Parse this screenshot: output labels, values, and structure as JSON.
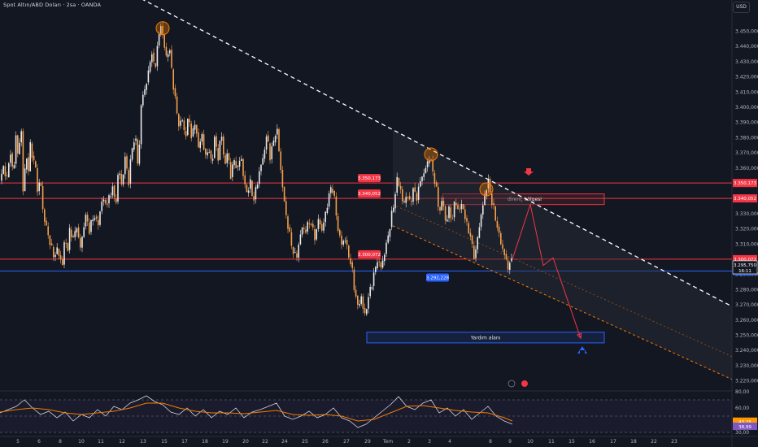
{
  "header": {
    "title": "Spot Altın/ABD Doları · 2sa · OANDA",
    "currency": "USD"
  },
  "chart_data": {
    "type": "candlestick",
    "instrument": "Spot Altın/ABD Doları",
    "timeframe": "2sa",
    "source": "OANDA",
    "ylim": [
      3215,
      3462
    ],
    "y_ticks": [
      {
        "value": 3450,
        "label": "3.450,000"
      },
      {
        "value": 3440,
        "label": "3.440,000"
      },
      {
        "value": 3430,
        "label": "3.430,000"
      },
      {
        "value": 3420,
        "label": "3.420,000"
      },
      {
        "value": 3410,
        "label": "3.410,000"
      },
      {
        "value": 3400,
        "label": "3.400,000"
      },
      {
        "value": 3390,
        "label": "3.390,000"
      },
      {
        "value": 3380,
        "label": "3.380,000"
      },
      {
        "value": 3370,
        "label": "3.370,000"
      },
      {
        "value": 3360,
        "label": "3.360,000"
      },
      {
        "value": 3330,
        "label": "3.330,000"
      },
      {
        "value": 3320,
        "label": "3.320,000"
      },
      {
        "value": 3310,
        "label": "3.310,000"
      },
      {
        "value": 3290,
        "label": "3.290,000"
      },
      {
        "value": 3280,
        "label": "3.280,000"
      },
      {
        "value": 3270,
        "label": "3.270,000"
      },
      {
        "value": 3260,
        "label": "3.260,000"
      },
      {
        "value": 3250,
        "label": "3.250,000"
      },
      {
        "value": 3240,
        "label": "3.240,000"
      },
      {
        "value": 3230,
        "label": "3.230,000"
      },
      {
        "value": 3220,
        "label": "3.220,000"
      }
    ],
    "x_ticks": [
      "5",
      "6",
      "8",
      "10",
      "11",
      "12",
      "13",
      "15",
      "17",
      "18",
      "19",
      "20",
      "22",
      "24",
      "25",
      "26",
      "27",
      "29",
      "Tem",
      "2",
      "3",
      "4",
      "8",
      "9",
      "10",
      "11",
      "15",
      "16",
      "17",
      "18",
      "22",
      "23"
    ],
    "close_path": [
      [
        0,
        3352
      ],
      [
        4,
        3362
      ],
      [
        8,
        3350
      ],
      [
        12,
        3372
      ],
      [
        16,
        3356
      ],
      [
        20,
        3382
      ],
      [
        22,
        3368
      ],
      [
        26,
        3388
      ],
      [
        28,
        3342
      ],
      [
        31,
        3362
      ],
      [
        34,
        3372
      ],
      [
        36,
        3340
      ],
      [
        38,
        3402
      ],
      [
        40,
        3355
      ],
      [
        43,
        3368
      ],
      [
        46,
        3345
      ],
      [
        50,
        3352
      ],
      [
        53,
        3330
      ],
      [
        56,
        3322
      ],
      [
        59,
        3318
      ],
      [
        62,
        3308
      ],
      [
        65,
        3305
      ],
      [
        68,
        3302
      ],
      [
        71,
        3308
      ],
      [
        74,
        3300
      ],
      [
        77,
        3296
      ],
      [
        80,
        3318
      ],
      [
        83,
        3302
      ],
      [
        86,
        3322
      ],
      [
        90,
        3312
      ],
      [
        94,
        3324
      ],
      [
        98,
        3306
      ],
      [
        102,
        3318
      ],
      [
        106,
        3330
      ],
      [
        110,
        3318
      ],
      [
        115,
        3330
      ],
      [
        120,
        3322
      ],
      [
        126,
        3340
      ],
      [
        132,
        3336
      ],
      [
        138,
        3348
      ],
      [
        142,
        3335
      ],
      [
        146,
        3360
      ],
      [
        150,
        3348
      ],
      [
        154,
        3368
      ],
      [
        158,
        3350
      ],
      [
        162,
        3372
      ],
      [
        166,
        3382
      ],
      [
        170,
        3360
      ],
      [
        174,
        3405
      ],
      [
        178,
        3412
      ],
      [
        182,
        3420
      ],
      [
        186,
        3438
      ],
      [
        190,
        3424
      ],
      [
        194,
        3442
      ],
      [
        198,
        3455
      ],
      [
        200,
        3448
      ],
      [
        204,
        3432
      ],
      [
        208,
        3440
      ],
      [
        212,
        3420
      ],
      [
        216,
        3402
      ],
      [
        220,
        3388
      ],
      [
        224,
        3392
      ],
      [
        228,
        3380
      ],
      [
        232,
        3395
      ],
      [
        236,
        3378
      ],
      [
        240,
        3392
      ],
      [
        244,
        3372
      ],
      [
        248,
        3384
      ],
      [
        252,
        3366
      ],
      [
        256,
        3374
      ],
      [
        260,
        3362
      ],
      [
        264,
        3380
      ],
      [
        268,
        3366
      ],
      [
        272,
        3384
      ],
      [
        276,
        3362
      ],
      [
        280,
        3370
      ],
      [
        284,
        3354
      ],
      [
        288,
        3366
      ],
      [
        292,
        3358
      ],
      [
        296,
        3370
      ],
      [
        300,
        3350
      ],
      [
        304,
        3344
      ],
      [
        308,
        3350
      ],
      [
        312,
        3338
      ],
      [
        316,
        3350
      ],
      [
        320,
        3360
      ],
      [
        324,
        3368
      ],
      [
        328,
        3382
      ],
      [
        332,
        3368
      ],
      [
        336,
        3376
      ],
      [
        340,
        3388
      ],
      [
        344,
        3366
      ],
      [
        348,
        3344
      ],
      [
        352,
        3328
      ],
      [
        356,
        3316
      ],
      [
        360,
        3306
      ],
      [
        364,
        3300
      ],
      [
        368,
        3312
      ],
      [
        372,
        3322
      ],
      [
        376,
        3318
      ],
      [
        380,
        3326
      ],
      [
        384,
        3320
      ],
      [
        388,
        3314
      ],
      [
        392,
        3328
      ],
      [
        396,
        3318
      ],
      [
        400,
        3330
      ],
      [
        404,
        3340
      ],
      [
        408,
        3350
      ],
      [
        412,
        3336
      ],
      [
        416,
        3318
      ],
      [
        420,
        3310
      ],
      [
        424,
        3314
      ],
      [
        428,
        3304
      ],
      [
        432,
        3296
      ],
      [
        436,
        3280
      ],
      [
        440,
        3268
      ],
      [
        444,
        3276
      ],
      [
        448,
        3262
      ],
      [
        452,
        3272
      ],
      [
        456,
        3282
      ],
      [
        460,
        3290
      ],
      [
        464,
        3300
      ],
      [
        468,
        3294
      ],
      [
        472,
        3302
      ],
      [
        476,
        3312
      ],
      [
        480,
        3324
      ],
      [
        484,
        3336
      ],
      [
        488,
        3352
      ],
      [
        492,
        3348
      ],
      [
        496,
        3334
      ],
      [
        500,
        3344
      ],
      [
        504,
        3336
      ],
      [
        508,
        3346
      ],
      [
        512,
        3340
      ],
      [
        516,
        3350
      ],
      [
        520,
        3356
      ],
      [
        524,
        3360
      ],
      [
        528,
        3368
      ],
      [
        532,
        3358
      ],
      [
        536,
        3348
      ],
      [
        540,
        3330
      ],
      [
        544,
        3340
      ],
      [
        548,
        3324
      ],
      [
        552,
        3332
      ],
      [
        556,
        3326
      ],
      [
        560,
        3340
      ],
      [
        564,
        3330
      ],
      [
        568,
        3338
      ],
      [
        572,
        3326
      ],
      [
        576,
        3320
      ],
      [
        580,
        3310
      ],
      [
        584,
        3300
      ],
      [
        588,
        3318
      ],
      [
        592,
        3330
      ],
      [
        596,
        3342
      ],
      [
        600,
        3352
      ],
      [
        604,
        3340
      ],
      [
        608,
        3330
      ],
      [
        612,
        3320
      ],
      [
        616,
        3310
      ],
      [
        620,
        3304
      ],
      [
        624,
        3294
      ],
      [
        628,
        3300
      ],
      [
        630,
        3295.75
      ]
    ],
    "last_price": {
      "value": 3295.75,
      "label": "3.295,750",
      "countdown": "16:11"
    },
    "price_labels": [
      {
        "value": 3350.173,
        "label": "3.350,173",
        "color": "#f23645"
      },
      {
        "value": 3340.052,
        "label": "3.340,052",
        "color": "#f23645"
      },
      {
        "value": 3300.072,
        "label": "3.300,072",
        "color": "#f23645"
      },
      {
        "value": 3292.228,
        "label": "3.292,228",
        "color": "#2962ff"
      }
    ],
    "horizontal_lines": [
      {
        "value": 3350.173,
        "color": "#f23645"
      },
      {
        "value": 3340.052,
        "color": "#f23645"
      },
      {
        "value": 3300.072,
        "color": "#f23645"
      },
      {
        "value": 3292.228,
        "color": "#2962ff"
      }
    ],
    "zones": [
      {
        "label": "direnç bölgesi",
        "y_top": 3343,
        "y_bottom": 3336,
        "color": "#f23645"
      },
      {
        "label": "Yardım alanı",
        "y_top": 3252,
        "y_bottom": 3245,
        "color": "#2962ff"
      }
    ],
    "trendline_points": [
      [
        150,
        3478
      ],
      [
        900,
        3269
      ]
    ],
    "channel_lower_points": [
      [
        483,
        3322
      ],
      [
        900,
        3221
      ]
    ],
    "channel_mid_points": [
      [
        483,
        3336
      ],
      [
        900,
        3236
      ]
    ],
    "projection_path": [
      [
        630,
        3300
      ],
      [
        652,
        3336
      ],
      [
        668,
        3296
      ],
      [
        680,
        3301
      ],
      [
        714,
        3248
      ]
    ],
    "swing_highs": [
      [
        200,
        3452
      ],
      [
        530,
        3369
      ],
      [
        598,
        3346
      ]
    ],
    "rsi": {
      "ylim": [
        30,
        80
      ],
      "ticks": [
        {
          "value": 80,
          "label": "80,00"
        },
        {
          "value": 60,
          "label": "60,00"
        },
        {
          "value": 30,
          "label": "30,00"
        }
      ],
      "last_values": [
        {
          "value": 43.25,
          "label": "43,25",
          "color": "#ff9800"
        },
        {
          "value": 38.99,
          "label": "38,99",
          "color": "#7e57c2"
        }
      ],
      "rsi_line": [
        [
          0,
          54
        ],
        [
          10,
          58
        ],
        [
          20,
          62
        ],
        [
          30,
          70
        ],
        [
          40,
          60
        ],
        [
          50,
          52
        ],
        [
          60,
          56
        ],
        [
          70,
          48
        ],
        [
          80,
          55
        ],
        [
          90,
          44
        ],
        [
          100,
          52
        ],
        [
          110,
          48
        ],
        [
          120,
          58
        ],
        [
          130,
          50
        ],
        [
          140,
          62
        ],
        [
          150,
          58
        ],
        [
          160,
          66
        ],
        [
          170,
          70
        ],
        [
          180,
          75
        ],
        [
          190,
          68
        ],
        [
          200,
          64
        ],
        [
          210,
          55
        ],
        [
          220,
          52
        ],
        [
          230,
          60
        ],
        [
          240,
          50
        ],
        [
          250,
          58
        ],
        [
          260,
          48
        ],
        [
          270,
          56
        ],
        [
          280,
          52
        ],
        [
          290,
          60
        ],
        [
          300,
          48
        ],
        [
          310,
          55
        ],
        [
          320,
          58
        ],
        [
          330,
          62
        ],
        [
          340,
          66
        ],
        [
          350,
          50
        ],
        [
          360,
          46
        ],
        [
          370,
          50
        ],
        [
          380,
          56
        ],
        [
          390,
          48
        ],
        [
          400,
          52
        ],
        [
          410,
          60
        ],
        [
          420,
          48
        ],
        [
          430,
          44
        ],
        [
          440,
          36
        ],
        [
          450,
          40
        ],
        [
          460,
          48
        ],
        [
          470,
          56
        ],
        [
          480,
          64
        ],
        [
          490,
          74
        ],
        [
          500,
          62
        ],
        [
          510,
          58
        ],
        [
          520,
          66
        ],
        [
          530,
          70
        ],
        [
          540,
          54
        ],
        [
          550,
          60
        ],
        [
          560,
          50
        ],
        [
          570,
          58
        ],
        [
          580,
          46
        ],
        [
          590,
          54
        ],
        [
          600,
          62
        ],
        [
          610,
          50
        ],
        [
          620,
          44
        ],
        [
          630,
          40
        ]
      ],
      "ma_line": [
        [
          0,
          55
        ],
        [
          20,
          58
        ],
        [
          40,
          60
        ],
        [
          60,
          58
        ],
        [
          80,
          54
        ],
        [
          100,
          52
        ],
        [
          120,
          54
        ],
        [
          140,
          56
        ],
        [
          160,
          60
        ],
        [
          180,
          66
        ],
        [
          200,
          66
        ],
        [
          220,
          60
        ],
        [
          240,
          56
        ],
        [
          260,
          54
        ],
        [
          280,
          54
        ],
        [
          300,
          53
        ],
        [
          320,
          55
        ],
        [
          340,
          57
        ],
        [
          360,
          52
        ],
        [
          380,
          51
        ],
        [
          400,
          52
        ],
        [
          420,
          50
        ],
        [
          440,
          44
        ],
        [
          460,
          46
        ],
        [
          480,
          54
        ],
        [
          500,
          62
        ],
        [
          520,
          63
        ],
        [
          540,
          60
        ],
        [
          560,
          57
        ],
        [
          580,
          55
        ],
        [
          600,
          54
        ],
        [
          620,
          48
        ],
        [
          630,
          44
        ]
      ]
    }
  }
}
